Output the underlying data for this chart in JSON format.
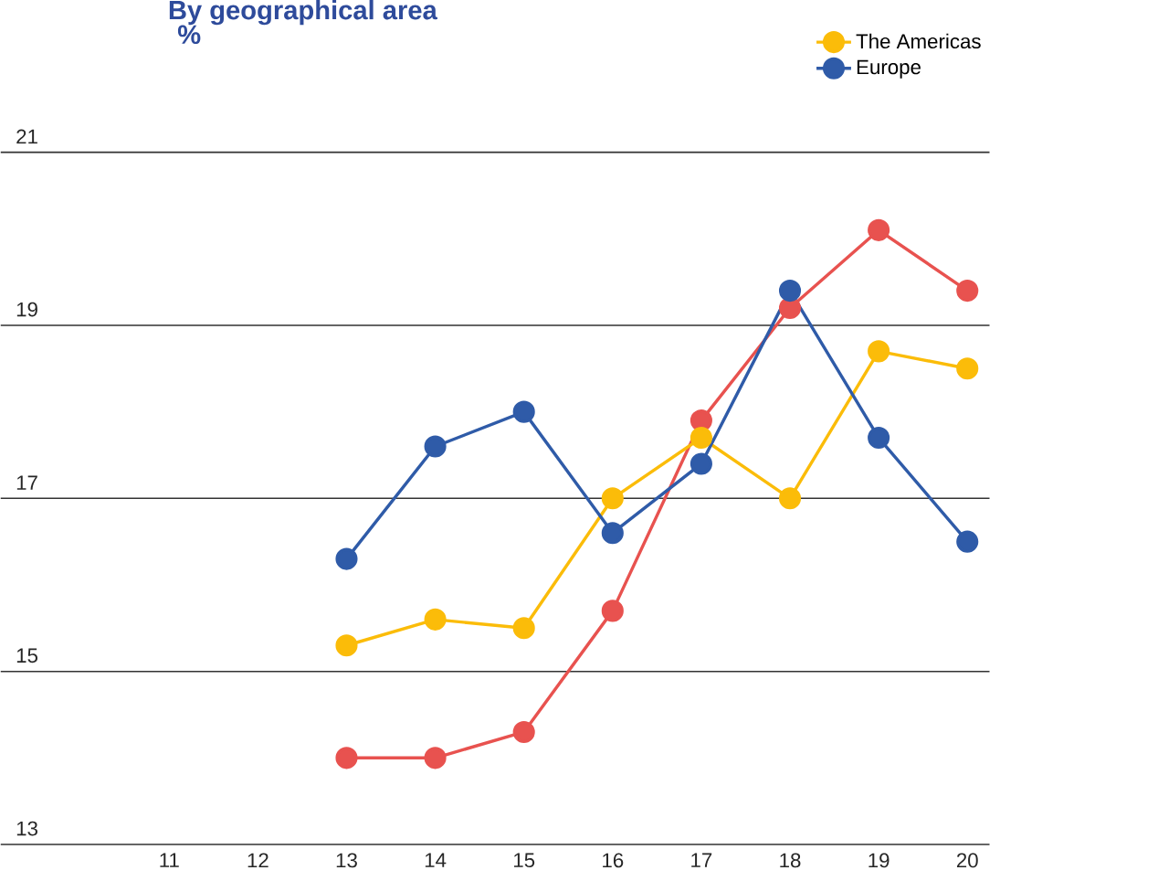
{
  "chart_data": {
    "type": "line",
    "title": "By geographical area",
    "subtitle": "%",
    "categories": [
      "11",
      "12",
      "13",
      "14",
      "15",
      "16",
      "17",
      "18",
      "19",
      "20"
    ],
    "series": [
      {
        "color": "#e8524f",
        "values": [
          null,
          null,
          14.0,
          14.0,
          14.3,
          15.7,
          17.9,
          19.2,
          20.1,
          19.4
        ]
      },
      {
        "name": "The Americas",
        "color": "#fbbc09",
        "values": [
          null,
          null,
          15.3,
          15.6,
          15.5,
          17.0,
          17.7,
          17.0,
          18.7,
          18.5
        ]
      },
      {
        "name": "Europe",
        "color": "#2f5ba8",
        "values": [
          null,
          null,
          16.3,
          17.6,
          18.0,
          16.6,
          17.4,
          19.4,
          17.7,
          16.5
        ]
      }
    ],
    "ylim": [
      13,
      21
    ],
    "yticks": [
      13,
      15,
      17,
      19,
      21
    ],
    "grid": "y",
    "legend": "top right",
    "marker": "circle",
    "line_style": "solid"
  }
}
